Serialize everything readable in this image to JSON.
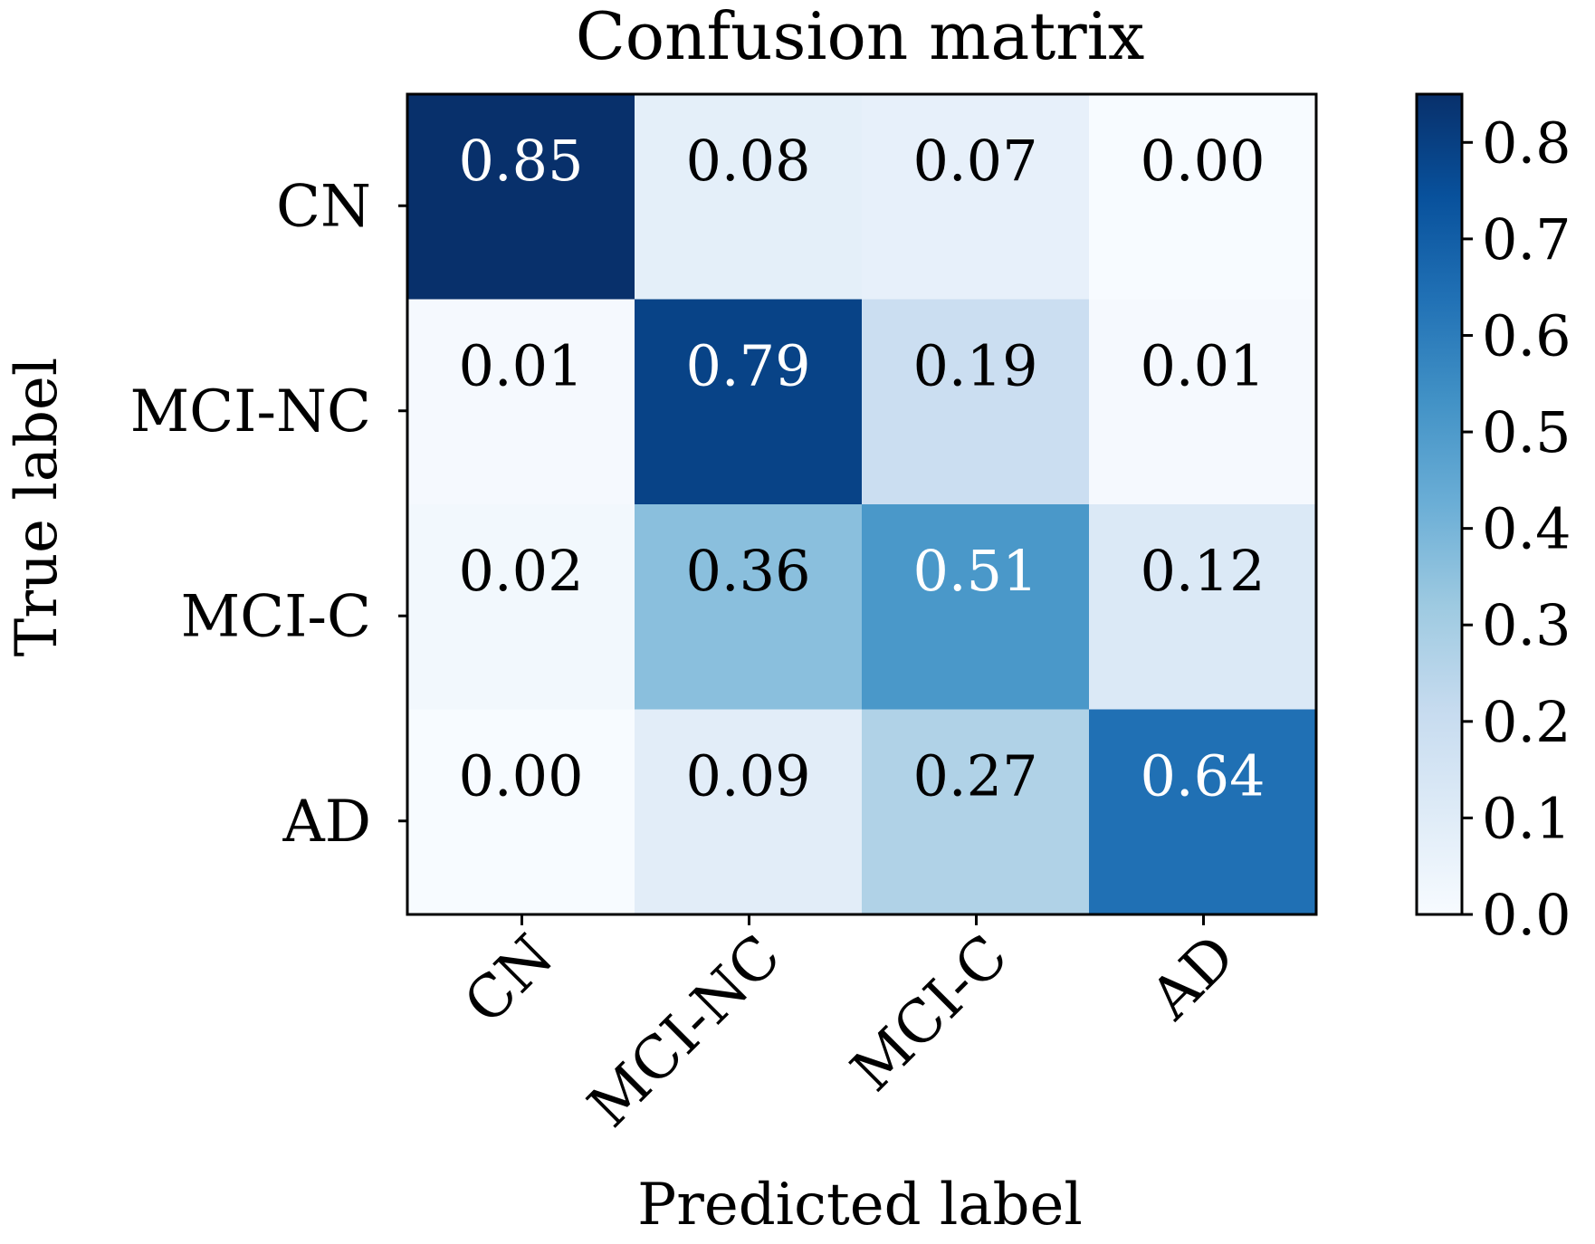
{
  "chart_data": {
    "type": "heatmap",
    "title": "Confusion matrix",
    "xlabel": "Predicted label",
    "ylabel": "True label",
    "x_categories": [
      "CN",
      "MCI-NC",
      "MCI-C",
      "AD"
    ],
    "y_categories": [
      "CN",
      "MCI-NC",
      "MCI-C",
      "AD"
    ],
    "values": [
      [
        0.85,
        0.08,
        0.07,
        0.0
      ],
      [
        0.01,
        0.79,
        0.19,
        0.01
      ],
      [
        0.02,
        0.36,
        0.51,
        0.12
      ],
      [
        0.0,
        0.09,
        0.27,
        0.64
      ]
    ],
    "cell_labels": [
      [
        "0.85",
        "0.08",
        "0.07",
        "0.00"
      ],
      [
        "0.01",
        "0.79",
        "0.19",
        "0.01"
      ],
      [
        "0.02",
        "0.36",
        "0.51",
        "0.12"
      ],
      [
        "0.00",
        "0.09",
        "0.27",
        "0.64"
      ]
    ],
    "colormap": "Blues",
    "color_range": [
      0.0,
      0.85
    ],
    "colorbar": {
      "ticks": [
        0.0,
        0.1,
        0.2,
        0.3,
        0.4,
        0.5,
        0.6,
        0.7,
        0.8
      ],
      "tick_labels": [
        "0.0",
        "0.1",
        "0.2",
        "0.3",
        "0.4",
        "0.5",
        "0.6",
        "0.7",
        "0.8"
      ],
      "placement": "right"
    },
    "text_colors": {
      "dark": "#000000",
      "light": "#ffffff"
    }
  }
}
